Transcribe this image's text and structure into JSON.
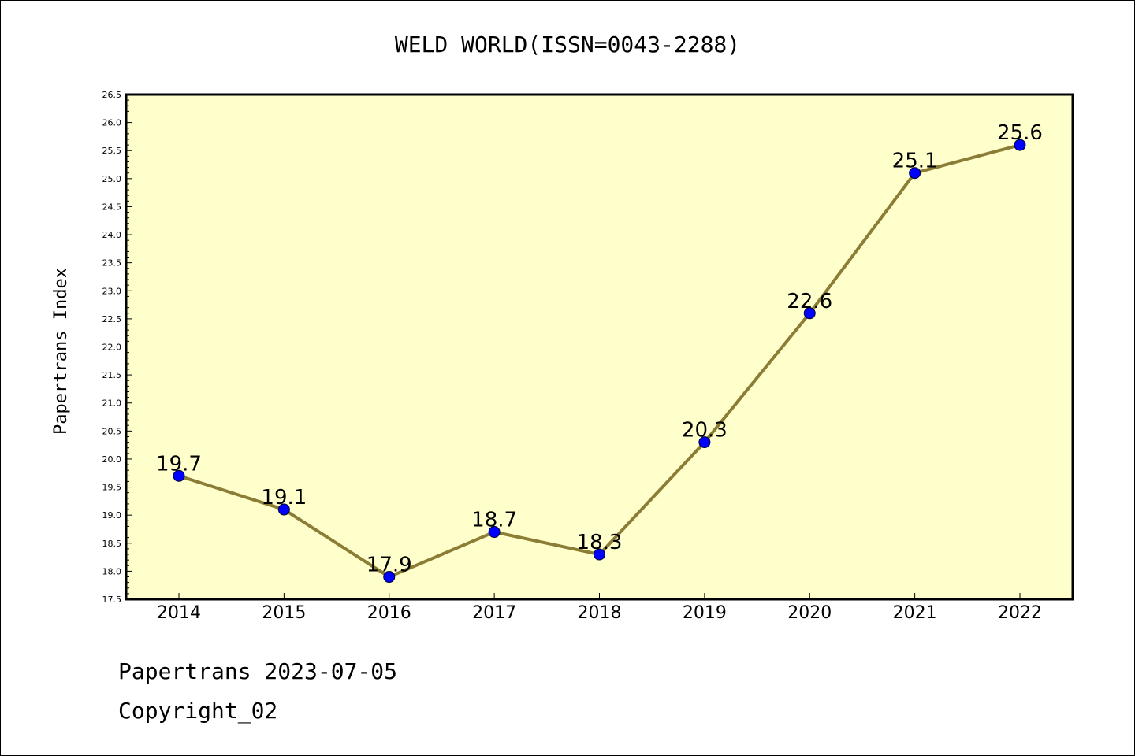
{
  "chart_data": {
    "type": "line",
    "title": "WELD WORLD(ISSN=0043-2288)",
    "xlabel": "",
    "ylabel": "Papertrans Index",
    "categories": [
      "2014",
      "2015",
      "2016",
      "2017",
      "2018",
      "2019",
      "2020",
      "2021",
      "2022"
    ],
    "series": [
      {
        "values": [
          19.7,
          19.1,
          17.9,
          18.7,
          18.3,
          20.3,
          22.6,
          25.1,
          25.6
        ],
        "labels": [
          "19.7",
          "19.1",
          "17.9",
          "18.7",
          "18.3",
          "20.3",
          "22.6",
          "25.1",
          "25.6"
        ]
      }
    ],
    "ylim": [
      17.5,
      26.5
    ],
    "yticks": [
      "17.5",
      "18.0",
      "18.5",
      "19.0",
      "19.5",
      "20.0",
      "20.5",
      "21.0",
      "21.5",
      "22.0",
      "22.5",
      "23.0",
      "23.5",
      "24.0",
      "24.5",
      "25.0",
      "25.5",
      "26.0",
      "26.5"
    ],
    "grid": false,
    "legend": "none",
    "colors": {
      "plot_background": "#ffffcc",
      "line": "#8b7d35",
      "marker": "#0000ff"
    }
  },
  "footer": {
    "date_line": "Papertrans 2023-07-05",
    "copyright": "Copyright_02"
  }
}
